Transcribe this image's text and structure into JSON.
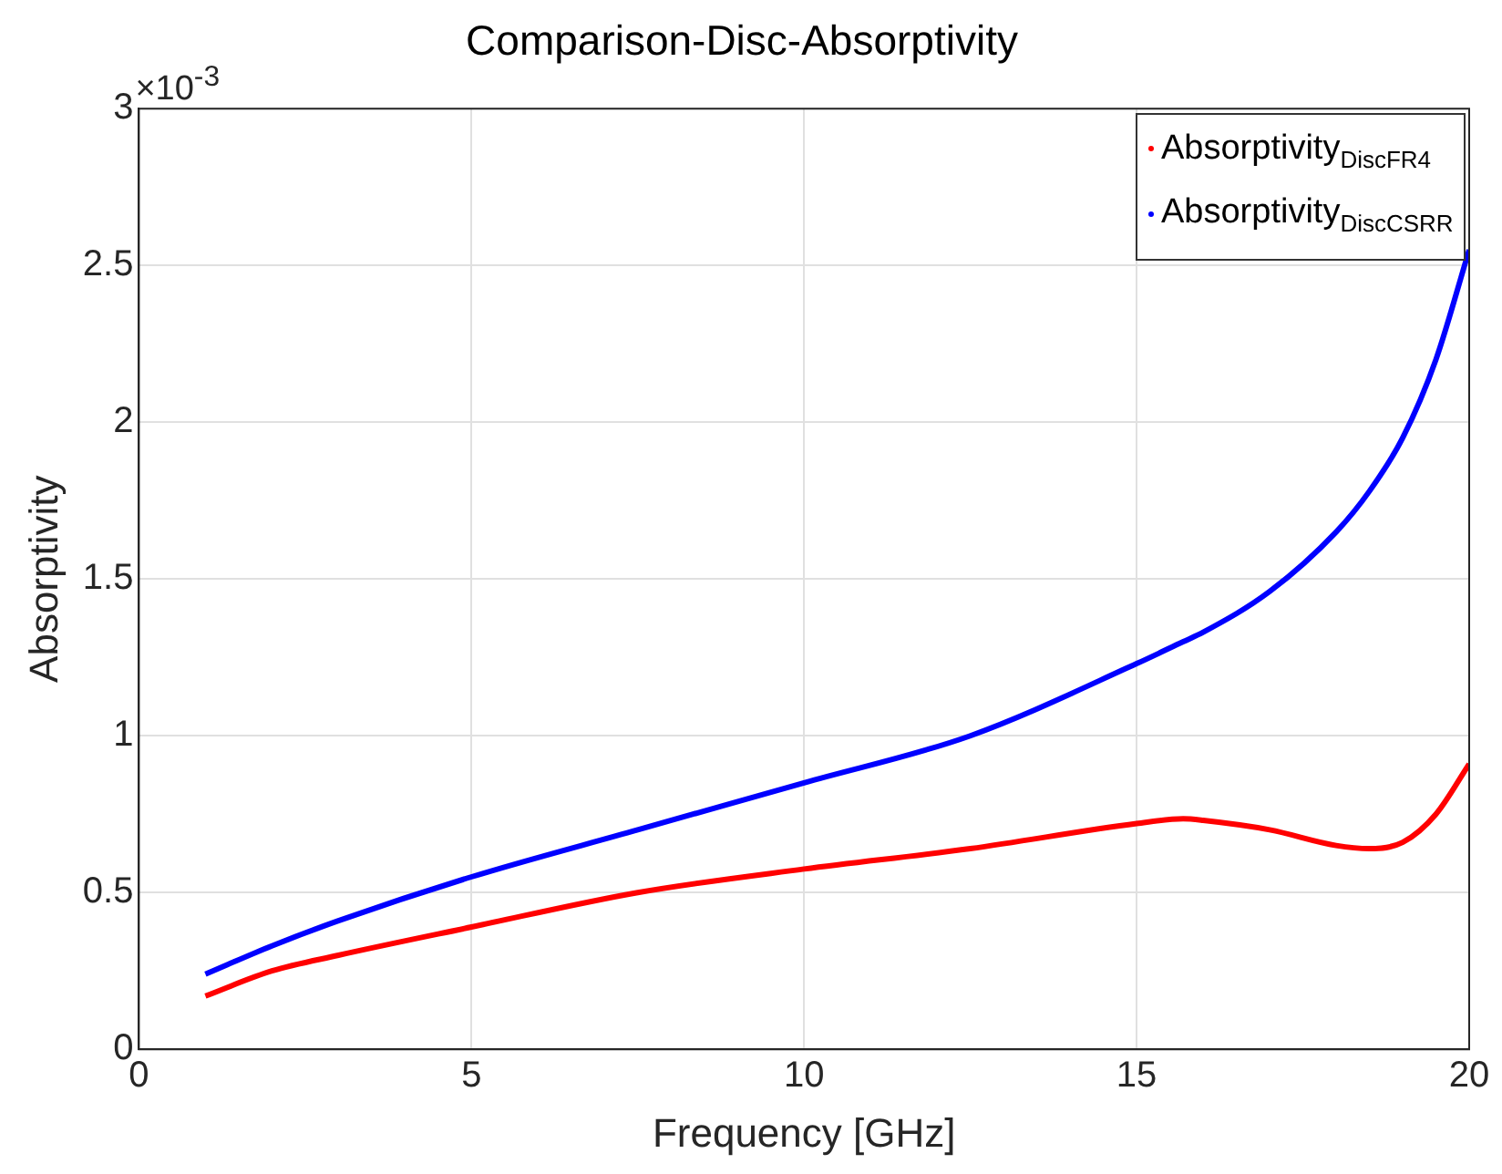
{
  "chart_data": {
    "type": "line",
    "title": "Comparison-Disc-Absorptivity",
    "xlabel": "Frequency [GHz]",
    "ylabel": "Absorptivity",
    "annotations": [
      "×10$^{-3}$"
    ],
    "x": [
      1,
      2,
      3,
      5,
      7.5,
      10,
      12.5,
      15,
      15.7,
      16,
      17,
      18,
      18.5,
      19,
      19.5,
      20
    ],
    "series": [
      {
        "name": "Absorptivity$_{DiscFR4}$",
        "color": "#ff0000",
        "values": [
          0.17,
          0.25,
          0.3,
          0.39,
          0.5,
          0.575,
          0.64,
          0.72,
          0.735,
          0.73,
          0.7,
          0.65,
          0.64,
          0.66,
          0.75,
          0.91
        ]
      },
      {
        "name": "Absorptivity$_{DiscCSRR}$",
        "color": "#0000ff",
        "values": [
          0.24,
          0.33,
          0.41,
          0.55,
          0.7,
          0.85,
          1.0,
          1.23,
          1.3,
          1.33,
          1.46,
          1.65,
          1.78,
          1.95,
          2.2,
          2.55
        ]
      }
    ],
    "xlim": [
      0,
      20
    ],
    "xticks": [
      0,
      5,
      10,
      15,
      20
    ],
    "ylim": [
      0,
      3
    ],
    "yticks": [
      0,
      0.5,
      1,
      1.5,
      2,
      2.5,
      3
    ],
    "grid": true,
    "legend": "top right",
    "marker": "none",
    "line_style": "solid"
  }
}
